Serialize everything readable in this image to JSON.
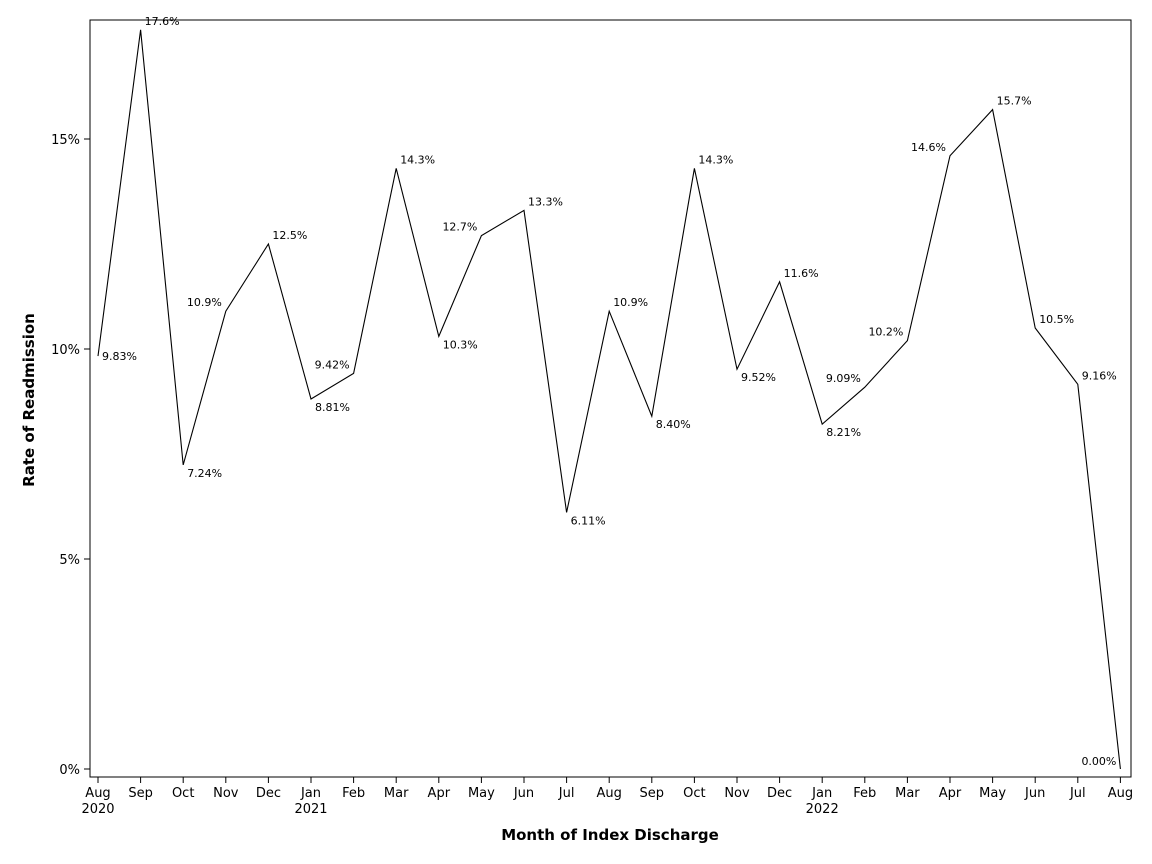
{
  "chart_data": {
    "type": "line",
    "title": "",
    "xlabel": "Month of Index Discharge",
    "ylabel": "Rate of Readmission",
    "ylim": [
      0,
      17.6
    ],
    "y_ticks": [
      "0%",
      "5%",
      "10%",
      "15%"
    ],
    "y_tick_values": [
      0,
      5,
      10,
      15
    ],
    "grid": false,
    "legend": "none",
    "line_color": "#000000",
    "categories": [
      "Aug",
      "Sep",
      "Oct",
      "Nov",
      "Dec",
      "Jan",
      "Feb",
      "Mar",
      "Apr",
      "May",
      "Jun",
      "Jul",
      "Aug",
      "Sep",
      "Oct",
      "Nov",
      "Dec",
      "Jan",
      "Feb",
      "Mar",
      "Apr",
      "May",
      "Jun",
      "Jul",
      "Aug"
    ],
    "year_labels": [
      {
        "index": 0,
        "label": "2020"
      },
      {
        "index": 5,
        "label": "2021"
      },
      {
        "index": 17,
        "label": "2022"
      }
    ],
    "values": [
      9.83,
      17.6,
      7.24,
      10.9,
      12.5,
      8.81,
      9.42,
      14.3,
      10.3,
      12.7,
      13.3,
      6.11,
      10.9,
      8.4,
      14.3,
      9.52,
      11.6,
      8.21,
      9.09,
      10.2,
      14.6,
      15.7,
      10.5,
      9.16,
      0.0
    ],
    "data_labels": [
      "9.83%",
      "17.6%",
      "7.24%",
      "10.9%",
      "12.5%",
      "8.81%",
      "9.42%",
      "14.3%",
      "10.3%",
      "12.7%",
      "13.3%",
      "6.11%",
      "10.9%",
      "8.40%",
      "14.3%",
      "9.52%",
      "11.6%",
      "8.21%",
      "9.09%",
      "10.2%",
      "14.6%",
      "15.7%",
      "10.5%",
      "9.16%",
      "0.00%"
    ]
  }
}
